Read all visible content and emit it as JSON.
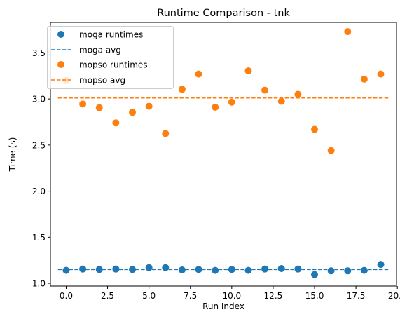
{
  "chart_data": {
    "type": "scatter",
    "title": "Runtime Comparison - tnk",
    "xlabel": "Run Index",
    "ylabel": "Time (s)",
    "xlim": [
      -0.95,
      19.95
    ],
    "ylim": [
      0.97,
      3.83
    ],
    "xticks": [
      0.0,
      2.5,
      5.0,
      7.5,
      10.0,
      12.5,
      15.0,
      17.5,
      20.0
    ],
    "xtick_labels": [
      "0.0",
      "2.5",
      "5.0",
      "7.5",
      "10.0",
      "12.5",
      "15.0",
      "17.5",
      "20.0"
    ],
    "yticks": [
      1.0,
      1.5,
      2.0,
      2.5,
      3.0,
      3.5
    ],
    "ytick_labels": [
      "1.0",
      "1.5",
      "2.0",
      "2.5",
      "3.0",
      "3.5"
    ],
    "grid": false,
    "legend_position": "top-left",
    "series": [
      {
        "name": "moga runtimes",
        "kind": "scatter",
        "color": "#1f77b4",
        "x": [
          0,
          1,
          2,
          3,
          4,
          5,
          6,
          7,
          8,
          9,
          10,
          11,
          12,
          13,
          14,
          15,
          16,
          17,
          18,
          19
        ],
        "values": [
          1.14,
          1.155,
          1.15,
          1.155,
          1.15,
          1.17,
          1.17,
          1.145,
          1.15,
          1.14,
          1.15,
          1.14,
          1.155,
          1.16,
          1.155,
          1.095,
          1.135,
          1.135,
          1.14,
          1.205
        ]
      },
      {
        "name": "moga avg",
        "kind": "hline",
        "color": "#1f77b4",
        "value": 1.15,
        "x_span": [
          -0.5,
          19.5
        ]
      },
      {
        "name": "mopso runtimes",
        "kind": "scatter",
        "color": "#ff7f0e",
        "x": [
          0,
          1,
          2,
          3,
          4,
          5,
          6,
          7,
          8,
          9,
          10,
          11,
          12,
          13,
          14,
          15,
          16,
          17,
          18,
          19
        ],
        "values": [
          3.2,
          2.945,
          2.905,
          2.74,
          2.855,
          2.92,
          2.625,
          3.105,
          3.27,
          2.91,
          2.965,
          3.305,
          3.095,
          2.975,
          3.05,
          2.67,
          2.44,
          3.73,
          3.215,
          3.27
        ]
      },
      {
        "name": "mopso avg",
        "kind": "hline",
        "color": "#ff7f0e",
        "value": 3.01,
        "x_span": [
          -0.5,
          19.5
        ]
      }
    ]
  }
}
